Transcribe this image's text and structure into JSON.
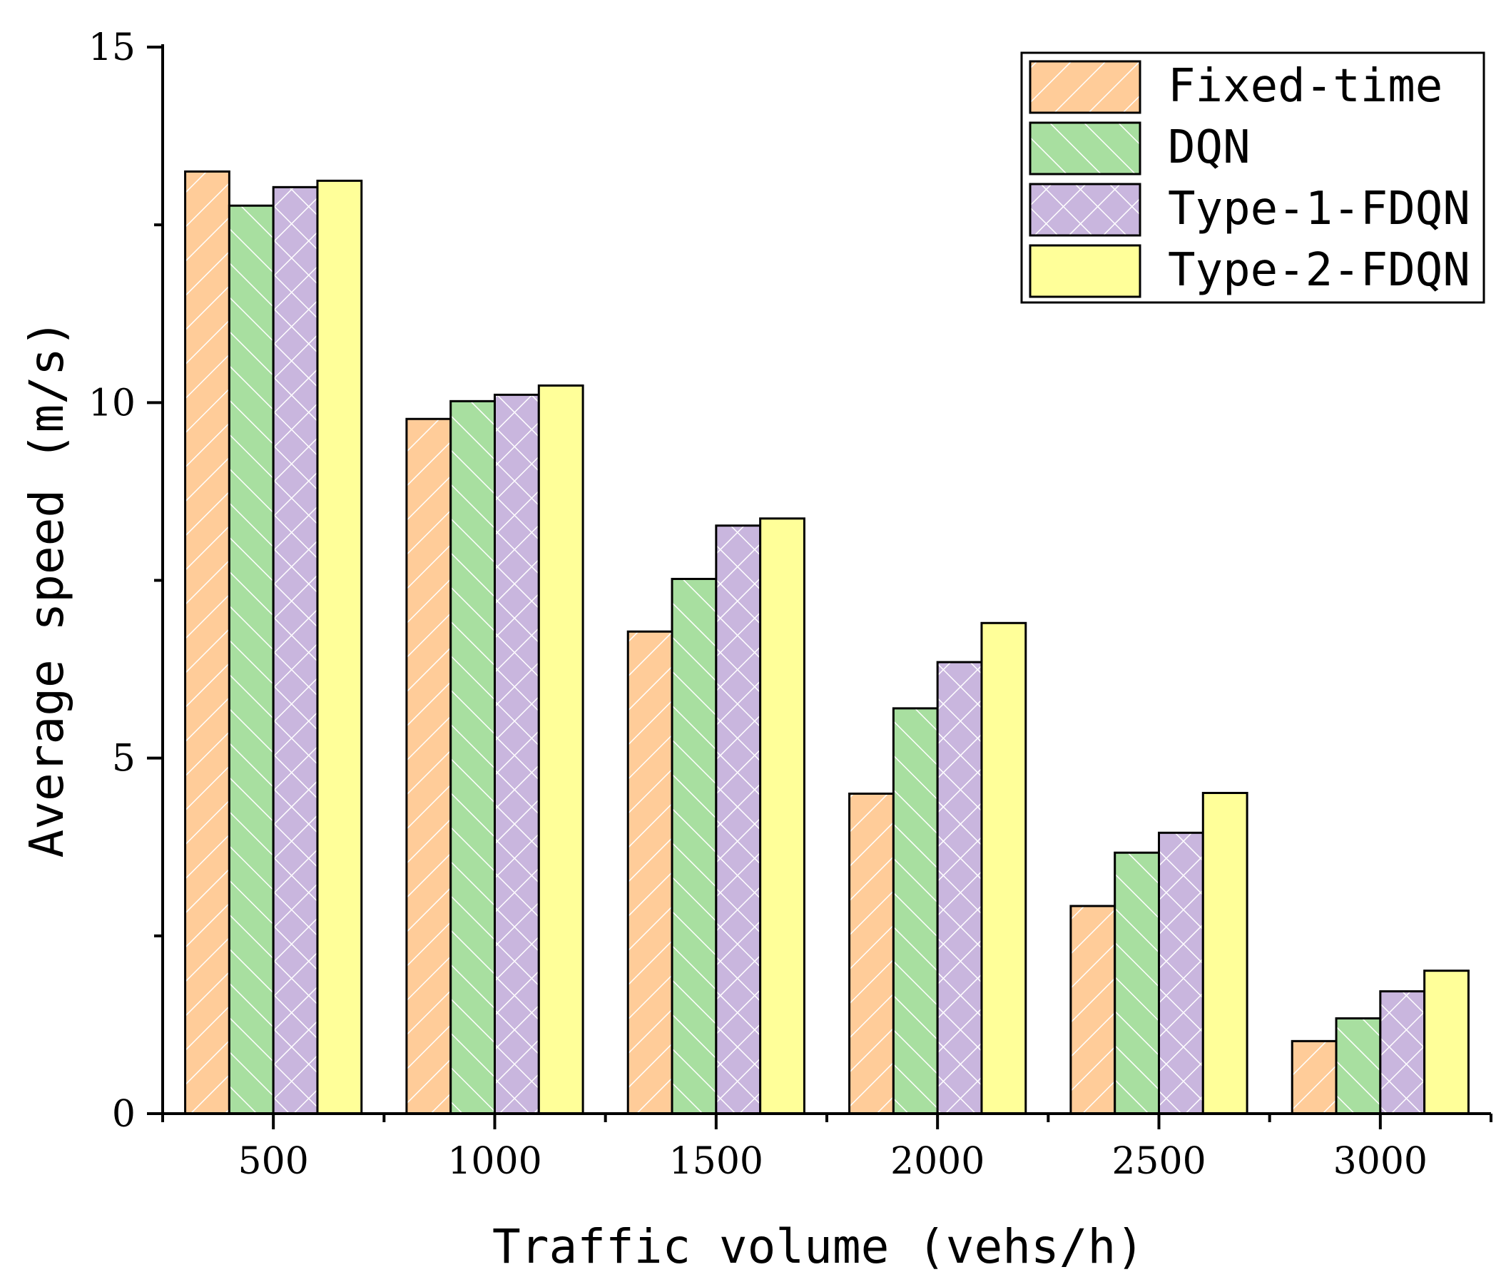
{
  "chart_data": {
    "type": "bar",
    "title": "",
    "xlabel": "Traffic volume (vehs/h)",
    "ylabel": "Average speed (m/s)",
    "categories": [
      "500",
      "1000",
      "1500",
      "2000",
      "2500",
      "3000"
    ],
    "ylim": [
      0,
      15
    ],
    "yticks": [
      0,
      5,
      10,
      15
    ],
    "series": [
      {
        "name": "Fixed-time",
        "color": "#FFCC99",
        "pattern": "forward-diagonal",
        "values": [
          13.25,
          9.77,
          6.78,
          4.5,
          2.92,
          1.02
        ]
      },
      {
        "name": "DQN",
        "color": "#A8DFA0",
        "pattern": "backward-diagonal",
        "values": [
          12.77,
          10.02,
          7.52,
          5.7,
          3.67,
          1.34
        ]
      },
      {
        "name": "Type-1-FDQN",
        "color": "#C9B6DE",
        "pattern": "cross-hatch",
        "values": [
          13.03,
          10.11,
          8.27,
          6.35,
          3.95,
          1.72
        ]
      },
      {
        "name": "Type-2-FDQN",
        "color": "#FFFF99",
        "pattern": "none",
        "values": [
          13.12,
          10.24,
          8.37,
          6.9,
          4.51,
          2.01
        ]
      }
    ],
    "legend_position": "top-right",
    "grid": false
  }
}
